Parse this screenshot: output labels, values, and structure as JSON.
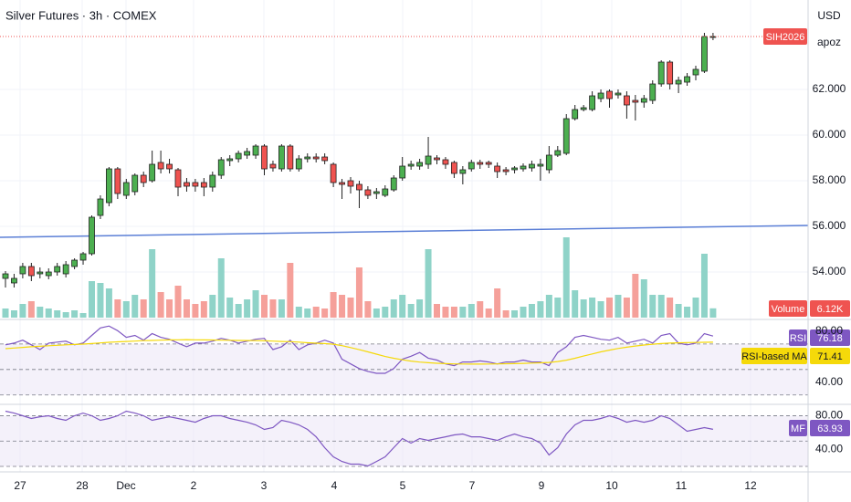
{
  "chart_data": {
    "type": "candlestick",
    "title": "Silver Futures · 3h · COMEX",
    "symbol_tag": "SIH2026",
    "currency": "USD",
    "axis_note": "apoz",
    "up_color": "#4caf50",
    "down_color": "#ef5350",
    "ylim": [
      52.08,
      65.92
    ],
    "yticks": [
      {
        "value": 62,
        "label": "62.000"
      },
      {
        "value": 60,
        "label": "60.000"
      },
      {
        "value": 58,
        "label": "58.000"
      },
      {
        "value": 56,
        "label": "56.000"
      },
      {
        "value": 54,
        "label": "54.000"
      }
    ],
    "grid": true,
    "time_labels": [
      "27",
      "28",
      "Dec",
      "2",
      "3",
      "4",
      "5",
      "7",
      "9",
      "10",
      "11",
      "12"
    ],
    "trendline": {
      "color": "#5b7fd6",
      "values": [
        55.52,
        56.04
      ]
    },
    "ohlc": [
      [
        53.72,
        54.04,
        53.32,
        53.92
      ],
      [
        53.52,
        53.92,
        53.32,
        53.72
      ],
      [
        53.92,
        54.4,
        53.72,
        54.24
      ],
      [
        54.24,
        54.4,
        53.6,
        53.84
      ],
      [
        53.92,
        54.2,
        53.72,
        54.0
      ],
      [
        53.84,
        54.16,
        53.68,
        54.0
      ],
      [
        54.0,
        54.4,
        53.84,
        54.24
      ],
      [
        53.92,
        54.48,
        53.76,
        54.32
      ],
      [
        54.24,
        54.6,
        54.12,
        54.52
      ],
      [
        54.52,
        54.88,
        54.32,
        54.8
      ],
      [
        54.8,
        56.48,
        54.72,
        56.4
      ],
      [
        56.48,
        57.36,
        56.32,
        57.2
      ],
      [
        57.04,
        58.6,
        56.88,
        58.52
      ],
      [
        58.52,
        58.6,
        57.2,
        57.44
      ],
      [
        57.36,
        58.08,
        57.2,
        57.92
      ],
      [
        57.52,
        58.32,
        57.36,
        58.24
      ],
      [
        58.24,
        58.4,
        57.72,
        57.92
      ],
      [
        58.0,
        59.32,
        57.92,
        58.72
      ],
      [
        58.8,
        59.32,
        58.32,
        58.52
      ],
      [
        58.72,
        58.96,
        58.32,
        58.52
      ],
      [
        58.48,
        58.56,
        57.32,
        57.72
      ],
      [
        57.92,
        58.12,
        57.52,
        57.76
      ],
      [
        57.92,
        58.08,
        57.52,
        57.76
      ],
      [
        57.92,
        58.12,
        57.32,
        57.72
      ],
      [
        57.72,
        58.4,
        57.52,
        58.24
      ],
      [
        58.24,
        59.04,
        58.08,
        58.92
      ],
      [
        58.88,
        59.12,
        58.64,
        58.96
      ],
      [
        58.96,
        59.32,
        58.8,
        59.2
      ],
      [
        59.12,
        59.44,
        58.96,
        59.28
      ],
      [
        59.12,
        59.6,
        58.96,
        59.52
      ],
      [
        59.52,
        59.6,
        58.24,
        58.52
      ],
      [
        58.72,
        58.88,
        58.4,
        58.56
      ],
      [
        58.52,
        59.6,
        58.4,
        59.52
      ],
      [
        59.52,
        59.6,
        58.4,
        58.52
      ],
      [
        58.52,
        59.12,
        58.4,
        58.96
      ],
      [
        58.96,
        59.2,
        58.8,
        59.04
      ],
      [
        59.04,
        59.2,
        58.8,
        58.96
      ],
      [
        59.04,
        59.2,
        58.72,
        58.88
      ],
      [
        58.72,
        58.8,
        57.72,
        57.92
      ],
      [
        57.92,
        58.08,
        57.2,
        57.84
      ],
      [
        58.0,
        58.16,
        57.44,
        57.76
      ],
      [
        57.84,
        58.0,
        56.8,
        57.6
      ],
      [
        57.6,
        57.76,
        57.2,
        57.36
      ],
      [
        57.44,
        57.68,
        57.2,
        57.52
      ],
      [
        57.36,
        57.8,
        57.28,
        57.64
      ],
      [
        57.6,
        58.24,
        57.52,
        58.12
      ],
      [
        58.12,
        59.04,
        58.0,
        58.64
      ],
      [
        58.64,
        58.88,
        58.48,
        58.72
      ],
      [
        58.64,
        58.96,
        58.48,
        58.8
      ],
      [
        58.72,
        59.92,
        58.52,
        59.08
      ],
      [
        59.0,
        59.12,
        58.72,
        58.92
      ],
      [
        58.92,
        59.04,
        58.52,
        58.72
      ],
      [
        58.8,
        58.88,
        58.12,
        58.32
      ],
      [
        58.32,
        58.64,
        57.84,
        58.48
      ],
      [
        58.52,
        58.92,
        58.4,
        58.8
      ],
      [
        58.8,
        58.92,
        58.52,
        58.72
      ],
      [
        58.8,
        58.88,
        58.56,
        58.72
      ],
      [
        58.64,
        58.8,
        58.12,
        58.4
      ],
      [
        58.48,
        58.6,
        58.24,
        58.4
      ],
      [
        58.48,
        58.64,
        58.32,
        58.56
      ],
      [
        58.52,
        58.76,
        58.4,
        58.64
      ],
      [
        58.56,
        58.88,
        58.4,
        58.72
      ],
      [
        58.64,
        58.96,
        58.0,
        58.72
      ],
      [
        58.48,
        59.52,
        58.32,
        59.12
      ],
      [
        59.12,
        59.52,
        59.04,
        59.32
      ],
      [
        59.2,
        60.92,
        59.12,
        60.72
      ],
      [
        60.72,
        61.32,
        60.64,
        61.12
      ],
      [
        61.12,
        61.32,
        61.04,
        61.2
      ],
      [
        61.12,
        61.92,
        61.04,
        61.72
      ],
      [
        61.6,
        62.0,
        61.44,
        61.84
      ],
      [
        61.92,
        62.0,
        61.2,
        61.6
      ],
      [
        61.76,
        62.0,
        61.6,
        61.84
      ],
      [
        61.72,
        61.92,
        60.72,
        61.32
      ],
      [
        61.52,
        61.76,
        60.64,
        61.44
      ],
      [
        61.44,
        61.76,
        61.2,
        61.6
      ],
      [
        61.52,
        62.4,
        61.36,
        62.24
      ],
      [
        62.24,
        63.28,
        62.12,
        63.2
      ],
      [
        63.2,
        63.28,
        62.0,
        62.24
      ],
      [
        62.24,
        62.56,
        61.84,
        62.4
      ],
      [
        62.32,
        62.72,
        62.16,
        62.56
      ],
      [
        62.64,
        63.04,
        62.4,
        62.88
      ],
      [
        62.8,
        64.48,
        62.72,
        64.32
      ],
      [
        64.32,
        64.48,
        64.16,
        64.32
      ]
    ],
    "volume": {
      "name": "Volume",
      "up_color": "#8fd3c8",
      "down_color": "#f5a09a",
      "last_value_label": "6.12K",
      "values": [
        6000,
        4800,
        9000,
        10800,
        7200,
        6000,
        4800,
        3600,
        4800,
        3000,
        24000,
        22800,
        19200,
        12000,
        10800,
        15000,
        12000,
        45000,
        16800,
        12000,
        21000,
        12000,
        9000,
        10800,
        15000,
        39000,
        13200,
        9000,
        12000,
        18000,
        15000,
        12000,
        12000,
        36000,
        7200,
        6000,
        7200,
        6000,
        16800,
        15000,
        13200,
        33000,
        10800,
        6000,
        7200,
        12000,
        15000,
        9000,
        12000,
        45000,
        9000,
        7200,
        7200,
        7200,
        9000,
        10800,
        6000,
        19200,
        4800,
        4800,
        7200,
        9000,
        10800,
        15000,
        13200,
        52800,
        18000,
        12000,
        13200,
        10800,
        13200,
        15000,
        13200,
        28800,
        25200,
        15000,
        15000,
        13200,
        9000,
        7200,
        13200,
        42000,
        6120
      ]
    },
    "rsi": {
      "ylim": [
        24.8,
        87.8
      ],
      "yticks": [
        {
          "value": 80,
          "label": "80.00"
        },
        {
          "value": 40,
          "label": "40.00"
        }
      ],
      "levels": [
        70,
        50,
        30
      ],
      "band_color": "#ede7f6",
      "series": [
        {
          "name": "RSI",
          "color": "#7e57c2",
          "values": [
            69.3,
            70.7,
            73.0,
            69.3,
            65.6,
            70.7,
            71.5,
            72.2,
            69.3,
            70.7,
            76.7,
            82.6,
            84.1,
            80.4,
            75.2,
            76.7,
            73.0,
            78.1,
            75.2,
            73.7,
            70.7,
            67.8,
            70.7,
            70.7,
            72.2,
            74.4,
            73.0,
            70.7,
            72.2,
            73.7,
            74.4,
            65.6,
            67.8,
            73.0,
            65.6,
            69.3,
            70.7,
            73.0,
            70.7,
            58.1,
            54.4,
            50.7,
            48.5,
            47.0,
            47.0,
            50.7,
            58.1,
            60.4,
            63.3,
            58.9,
            57.4,
            54.4,
            53.0,
            55.9,
            55.9,
            56.7,
            55.9,
            54.4,
            55.9,
            55.9,
            57.4,
            55.9,
            55.9,
            53.0,
            63.3,
            67.8,
            75.2,
            76.7,
            75.2,
            73.7,
            73.0,
            75.2,
            70.7,
            72.2,
            73.7,
            70.7,
            76.7,
            78.1,
            70.7,
            69.3,
            70.7,
            78.1,
            76.18
          ]
        },
        {
          "name": "RSI-based MA",
          "color": "#f5d90a",
          "values": [
            66.3,
            66.8,
            67.3,
            67.8,
            68.2,
            68.6,
            69.0,
            69.3,
            69.6,
            69.9,
            70.3,
            70.8,
            71.3,
            71.7,
            72.0,
            72.3,
            72.6,
            72.8,
            73.0,
            73.2,
            73.3,
            73.4,
            73.3,
            73.2,
            73.1,
            73.0,
            72.9,
            72.8,
            72.7,
            72.6,
            72.5,
            72.3,
            72.0,
            71.8,
            71.5,
            71.0,
            70.6,
            70.3,
            69.8,
            68.7,
            67.2,
            65.5,
            63.8,
            62.0,
            60.2,
            58.8,
            57.6,
            56.6,
            55.8,
            55.3,
            54.9,
            54.6,
            54.4,
            54.3,
            54.2,
            54.2,
            54.3,
            54.4,
            54.5,
            54.6,
            54.8,
            55.0,
            55.2,
            55.5,
            56.2,
            57.3,
            58.8,
            60.5,
            62.2,
            63.8,
            65.2,
            66.5,
            67.5,
            68.4,
            69.2,
            69.8,
            70.3,
            70.7,
            70.9,
            71.1,
            71.2,
            71.3,
            71.41
          ]
        }
      ]
    },
    "mf": {
      "ylim": [
        14.6,
        91.4
      ],
      "yticks": [
        {
          "value": 80,
          "label": "80.00"
        },
        {
          "value": 40,
          "label": "40.00"
        }
      ],
      "levels": [
        80,
        50,
        20
      ],
      "band_color": "#ede7f6",
      "series": [
        {
          "name": "MF",
          "color": "#7e57c2",
          "values": [
            85.4,
            83.2,
            80.0,
            76.8,
            78.9,
            80.0,
            76.8,
            74.6,
            80.0,
            83.2,
            80.0,
            74.6,
            76.8,
            80.0,
            85.4,
            83.2,
            80.0,
            74.6,
            76.8,
            78.9,
            76.8,
            74.6,
            72.4,
            76.8,
            80.0,
            80.0,
            76.8,
            74.6,
            72.4,
            69.2,
            63.8,
            66.0,
            74.6,
            72.4,
            69.2,
            63.8,
            55.1,
            42.2,
            31.4,
            25.9,
            22.7,
            22.7,
            20.5,
            25.9,
            31.4,
            42.2,
            53.0,
            47.6,
            53.0,
            50.8,
            53.0,
            55.1,
            57.3,
            58.4,
            55.1,
            55.1,
            53.0,
            50.8,
            55.1,
            58.4,
            55.1,
            53.0,
            47.6,
            33.5,
            42.2,
            58.4,
            69.2,
            74.6,
            74.6,
            76.8,
            80.0,
            76.8,
            72.4,
            74.6,
            72.4,
            74.6,
            80.0,
            76.8,
            69.2,
            61.6,
            63.8,
            66.0,
            63.93
          ]
        }
      ]
    }
  }
}
